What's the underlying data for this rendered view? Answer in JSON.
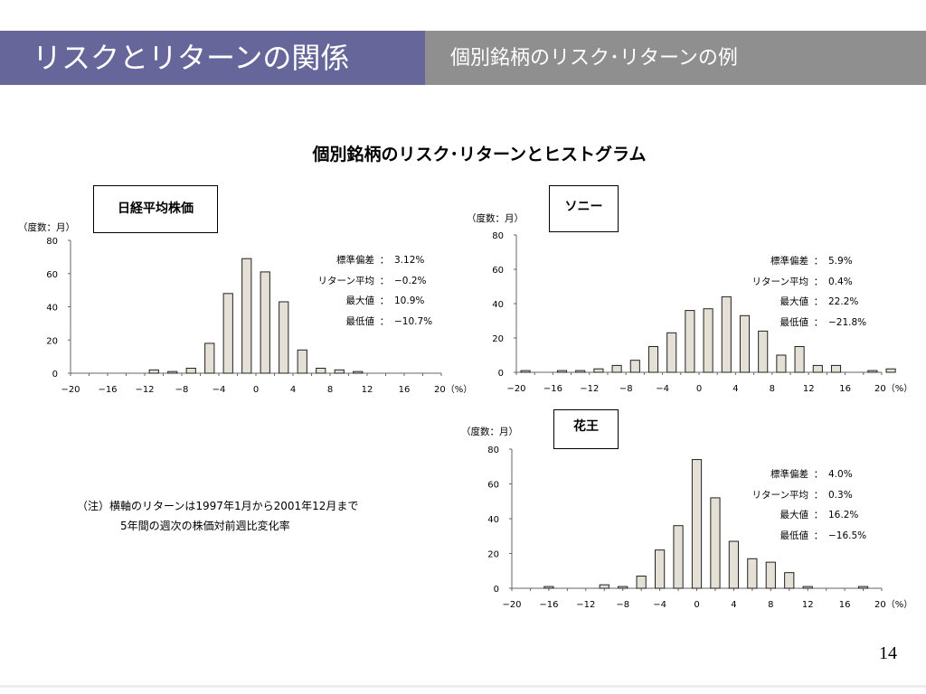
{
  "header": {
    "title": "リスクとリターンの関係",
    "subtitle": "個別銘柄のリスク･リターンの例"
  },
  "main_title": "個別銘柄のリスク･リターンとヒストグラム",
  "note": {
    "line1": "（注）横軸のリターンは1997年1月から2001年12月まで",
    "line2": "5年間の週次の株価対前週比変化率"
  },
  "page_number": "14",
  "colors": {
    "header_left": "#66669a",
    "header_right": "#8f8f8f",
    "bar_fill": "#e4e0d6"
  },
  "chart_data": [
    {
      "type": "bar",
      "title": "日経平均株価",
      "unit_label": "（度数：月）",
      "x_tick_labels": [
        "−20",
        "−16",
        "−12",
        "−8",
        "−4",
        "0",
        "4",
        "8",
        "12",
        "16",
        "20（%）"
      ],
      "x_ticks": [
        -20,
        -16,
        -12,
        -8,
        -4,
        0,
        4,
        8,
        12,
        16,
        20
      ],
      "y_ticks": [
        0,
        20,
        40,
        60,
        80
      ],
      "ylim": [
        0,
        80
      ],
      "x": [
        -11,
        -9,
        -7,
        -5,
        -3,
        -1,
        1,
        3,
        5,
        7,
        9,
        11
      ],
      "values": [
        2,
        1,
        3,
        18,
        48,
        69,
        61,
        43,
        14,
        3,
        2,
        1
      ],
      "stats": [
        {
          "label": "標準偏差",
          "value": "3.12%"
        },
        {
          "label": "リターン平均",
          "value": "−0.2%"
        },
        {
          "label": "最大値",
          "value": "10.9%"
        },
        {
          "label": "最低値",
          "value": "−10.7%"
        }
      ]
    },
    {
      "type": "bar",
      "title": "ソニー",
      "unit_label": "（度数：月）",
      "x_tick_labels": [
        "−20",
        "−16",
        "−12",
        "−8",
        "−4",
        "0",
        "4",
        "8",
        "12",
        "16",
        "20（%）"
      ],
      "x_ticks": [
        -20,
        -16,
        -12,
        -8,
        -4,
        0,
        4,
        8,
        12,
        16,
        20
      ],
      "y_ticks": [
        0,
        20,
        40,
        60,
        80
      ],
      "ylim": [
        0,
        80
      ],
      "x": [
        -19,
        -15,
        -13,
        -11,
        -9,
        -7,
        -5,
        -3,
        -1,
        1,
        3,
        5,
        7,
        9,
        11,
        13,
        15,
        19,
        21
      ],
      "values": [
        1,
        1,
        1,
        2,
        4,
        7,
        15,
        23,
        36,
        37,
        44,
        33,
        24,
        10,
        15,
        4,
        4,
        1,
        2
      ],
      "stats": [
        {
          "label": "標準偏差",
          "value": "5.9%"
        },
        {
          "label": "リターン平均",
          "value": "0.4%"
        },
        {
          "label": "最大値",
          "value": "22.2%"
        },
        {
          "label": "最低値",
          "value": "−21.8%"
        }
      ]
    },
    {
      "type": "bar",
      "title": "花王",
      "unit_label": "（度数：月）",
      "x_tick_labels": [
        "−20",
        "−16",
        "−12",
        "−8",
        "−4",
        "0",
        "4",
        "8",
        "12",
        "16",
        "20（%）"
      ],
      "x_ticks": [
        -20,
        -16,
        -12,
        -8,
        -4,
        0,
        4,
        8,
        12,
        16,
        20
      ],
      "y_ticks": [
        0,
        20,
        40,
        60,
        80
      ],
      "ylim": [
        0,
        80
      ],
      "x": [
        -16,
        -10,
        -8,
        -6,
        -4,
        -2,
        0,
        2,
        4,
        6,
        8,
        10,
        12,
        18
      ],
      "values": [
        1,
        2,
        1,
        7,
        22,
        36,
        74,
        52,
        27,
        17,
        15,
        9,
        1,
        1
      ],
      "stats": [
        {
          "label": "標準偏差",
          "value": "4.0%"
        },
        {
          "label": "リターン平均",
          "value": "0.3%"
        },
        {
          "label": "最大値",
          "value": "16.2%"
        },
        {
          "label": "最低値",
          "value": "−16.5%"
        }
      ]
    }
  ]
}
